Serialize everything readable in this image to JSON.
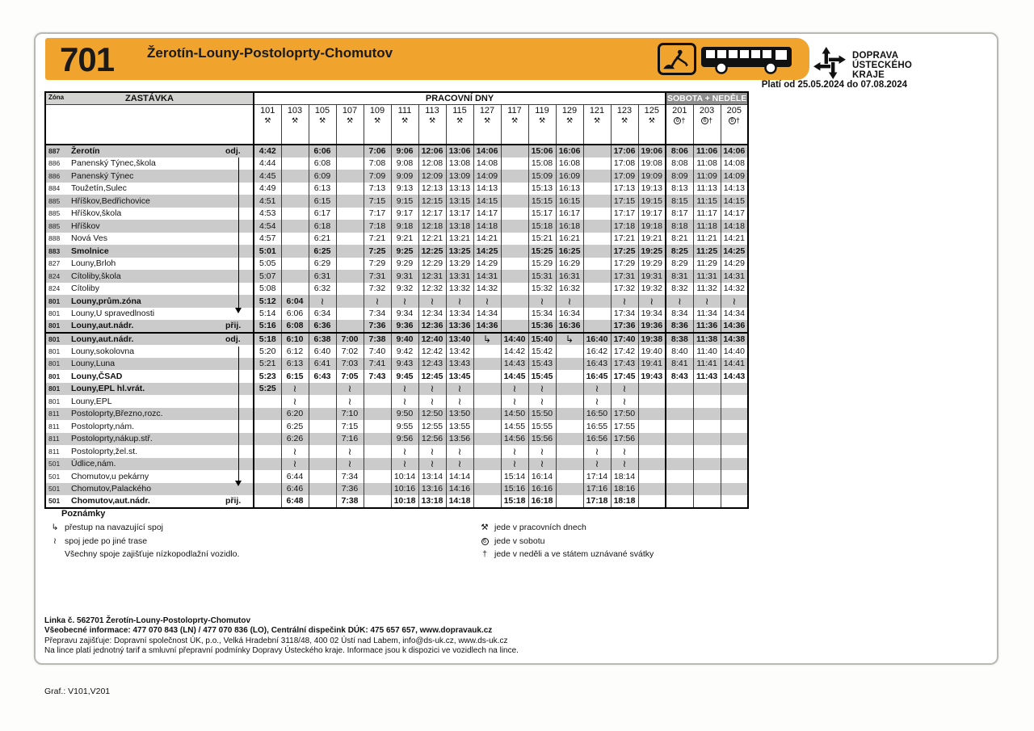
{
  "header": {
    "route_number": "701",
    "title": "Žerotín-Louny-Postoloprty-Chomutov",
    "validity": "Platí od 25.05.2024 do 07.08.2024",
    "accent_color": "#f0a42e",
    "brand": {
      "line1": "DOPRAVA",
      "line2": "ÚSTECKÉHO",
      "line3": "KRAJE"
    }
  },
  "table": {
    "zone_header": "Zóna",
    "stop_header": "ZASTÁVKA",
    "workdays_header": "PRACOVNÍ DNY",
    "weekend_header": "SOBOTA + NEDĚLE",
    "symbols": {
      "workday": "⚒",
      "saturday": "6",
      "holiday": "†",
      "other_route": "≀",
      "transfer": "↳"
    },
    "columns": [
      {
        "id": "101",
        "type": "workday"
      },
      {
        "id": "103",
        "type": "workday"
      },
      {
        "id": "105",
        "type": "workday"
      },
      {
        "id": "107",
        "type": "workday"
      },
      {
        "id": "109",
        "type": "workday"
      },
      {
        "id": "111",
        "type": "workday"
      },
      {
        "id": "113",
        "type": "workday"
      },
      {
        "id": "115",
        "type": "workday"
      },
      {
        "id": "127",
        "type": "workday"
      },
      {
        "id": "117",
        "type": "workday"
      },
      {
        "id": "119",
        "type": "workday"
      },
      {
        "id": "129",
        "type": "workday"
      },
      {
        "id": "121",
        "type": "workday"
      },
      {
        "id": "123",
        "type": "workday"
      },
      {
        "id": "125",
        "type": "workday"
      },
      {
        "id": "201",
        "type": "weekend"
      },
      {
        "id": "203",
        "type": "weekend"
      },
      {
        "id": "205",
        "type": "weekend"
      }
    ],
    "rows": [
      {
        "zone": "887",
        "name": "Žerotín",
        "bold": true,
        "note": "odj.",
        "times": [
          "4:42",
          "",
          "6:06",
          "",
          "7:06",
          "9:06",
          "12:06",
          "13:06",
          "14:06",
          "",
          "15:06",
          "16:06",
          "",
          "17:06",
          "19:06",
          "8:06",
          "11:06",
          "14:06"
        ]
      },
      {
        "zone": "886",
        "name": "Panenský Týnec,škola",
        "bold": false,
        "note": "",
        "times": [
          "4:44",
          "",
          "6:08",
          "",
          "7:08",
          "9:08",
          "12:08",
          "13:08",
          "14:08",
          "",
          "15:08",
          "16:08",
          "",
          "17:08",
          "19:08",
          "8:08",
          "11:08",
          "14:08"
        ]
      },
      {
        "zone": "886",
        "name": "Panenský Týnec",
        "bold": false,
        "note": "",
        "times": [
          "4:45",
          "",
          "6:09",
          "",
          "7:09",
          "9:09",
          "12:09",
          "13:09",
          "14:09",
          "",
          "15:09",
          "16:09",
          "",
          "17:09",
          "19:09",
          "8:09",
          "11:09",
          "14:09"
        ]
      },
      {
        "zone": "884",
        "name": "Toužetín,Sulec",
        "bold": false,
        "note": "",
        "times": [
          "4:49",
          "",
          "6:13",
          "",
          "7:13",
          "9:13",
          "12:13",
          "13:13",
          "14:13",
          "",
          "15:13",
          "16:13",
          "",
          "17:13",
          "19:13",
          "8:13",
          "11:13",
          "14:13"
        ]
      },
      {
        "zone": "885",
        "name": "Hříškov,Bedřichovice",
        "bold": false,
        "note": "",
        "times": [
          "4:51",
          "",
          "6:15",
          "",
          "7:15",
          "9:15",
          "12:15",
          "13:15",
          "14:15",
          "",
          "15:15",
          "16:15",
          "",
          "17:15",
          "19:15",
          "8:15",
          "11:15",
          "14:15"
        ]
      },
      {
        "zone": "885",
        "name": "Hříškov,škola",
        "bold": false,
        "note": "",
        "times": [
          "4:53",
          "",
          "6:17",
          "",
          "7:17",
          "9:17",
          "12:17",
          "13:17",
          "14:17",
          "",
          "15:17",
          "16:17",
          "",
          "17:17",
          "19:17",
          "8:17",
          "11:17",
          "14:17"
        ]
      },
      {
        "zone": "885",
        "name": "Hříškov",
        "bold": false,
        "note": "",
        "times": [
          "4:54",
          "",
          "6:18",
          "",
          "7:18",
          "9:18",
          "12:18",
          "13:18",
          "14:18",
          "",
          "15:18",
          "16:18",
          "",
          "17:18",
          "19:18",
          "8:18",
          "11:18",
          "14:18"
        ]
      },
      {
        "zone": "888",
        "name": "Nová Ves",
        "bold": false,
        "note": "",
        "times": [
          "4:57",
          "",
          "6:21",
          "",
          "7:21",
          "9:21",
          "12:21",
          "13:21",
          "14:21",
          "",
          "15:21",
          "16:21",
          "",
          "17:21",
          "19:21",
          "8:21",
          "11:21",
          "14:21"
        ]
      },
      {
        "zone": "883",
        "name": "Smolnice",
        "bold": true,
        "note": "",
        "times": [
          "5:01",
          "",
          "6:25",
          "",
          "7:25",
          "9:25",
          "12:25",
          "13:25",
          "14:25",
          "",
          "15:25",
          "16:25",
          "",
          "17:25",
          "19:25",
          "8:25",
          "11:25",
          "14:25"
        ]
      },
      {
        "zone": "827",
        "name": "Louny,Brloh",
        "bold": false,
        "note": "",
        "times": [
          "5:05",
          "",
          "6:29",
          "",
          "7:29",
          "9:29",
          "12:29",
          "13:29",
          "14:29",
          "",
          "15:29",
          "16:29",
          "",
          "17:29",
          "19:29",
          "8:29",
          "11:29",
          "14:29"
        ]
      },
      {
        "zone": "824",
        "name": "Cítoliby,škola",
        "bold": false,
        "note": "",
        "times": [
          "5:07",
          "",
          "6:31",
          "",
          "7:31",
          "9:31",
          "12:31",
          "13:31",
          "14:31",
          "",
          "15:31",
          "16:31",
          "",
          "17:31",
          "19:31",
          "8:31",
          "11:31",
          "14:31"
        ]
      },
      {
        "zone": "824",
        "name": "Cítoliby",
        "bold": false,
        "note": "",
        "times": [
          "5:08",
          "",
          "6:32",
          "",
          "7:32",
          "9:32",
          "12:32",
          "13:32",
          "14:32",
          "",
          "15:32",
          "16:32",
          "",
          "17:32",
          "19:32",
          "8:32",
          "11:32",
          "14:32"
        ]
      },
      {
        "zone": "801",
        "name": "Louny,prům.zóna",
        "bold": true,
        "note": "",
        "times": [
          "5:12",
          "6:04",
          "≀",
          "",
          "≀",
          "≀",
          "≀",
          "≀",
          "≀",
          "",
          "≀",
          "≀",
          "",
          "≀",
          "≀",
          "≀",
          "≀",
          "≀"
        ]
      },
      {
        "zone": "801",
        "name": "Louny,U spravedlnosti",
        "bold": false,
        "note": "",
        "times": [
          "5:14",
          "6:06",
          "6:34",
          "",
          "7:34",
          "9:34",
          "12:34",
          "13:34",
          "14:34",
          "",
          "15:34",
          "16:34",
          "",
          "17:34",
          "19:34",
          "8:34",
          "11:34",
          "14:34"
        ]
      },
      {
        "zone": "801",
        "name": "Louny,aut.nádr.",
        "bold": true,
        "note": "přij.",
        "times": [
          "5:16",
          "6:08",
          "6:36",
          "",
          "7:36",
          "9:36",
          "12:36",
          "13:36",
          "14:36",
          "",
          "15:36",
          "16:36",
          "",
          "17:36",
          "19:36",
          "8:36",
          "11:36",
          "14:36"
        ]
      },
      {
        "zone": "801",
        "name": "Louny,aut.nádr.",
        "bold": true,
        "note": "odj.",
        "times": [
          "5:18",
          "6:10",
          "6:38",
          "7:00",
          "7:38",
          "9:40",
          "12:40",
          "13:40",
          "↳",
          "14:40",
          "15:40",
          "↳",
          "16:40",
          "17:40",
          "19:38",
          "8:38",
          "11:38",
          "14:38"
        ]
      },
      {
        "zone": "801",
        "name": "Louny,sokolovna",
        "bold": false,
        "note": "",
        "times": [
          "5:20",
          "6:12",
          "6:40",
          "7:02",
          "7:40",
          "9:42",
          "12:42",
          "13:42",
          "",
          "14:42",
          "15:42",
          "",
          "16:42",
          "17:42",
          "19:40",
          "8:40",
          "11:40",
          "14:40"
        ]
      },
      {
        "zone": "801",
        "name": "Louny,Luna",
        "bold": false,
        "note": "",
        "times": [
          "5:21",
          "6:13",
          "6:41",
          "7:03",
          "7:41",
          "9:43",
          "12:43",
          "13:43",
          "",
          "14:43",
          "15:43",
          "",
          "16:43",
          "17:43",
          "19:41",
          "8:41",
          "11:41",
          "14:41"
        ]
      },
      {
        "zone": "801",
        "name": "Louny,ČSAD",
        "bold": true,
        "note": "",
        "times": [
          "5:23",
          "6:15",
          "6:43",
          "7:05",
          "7:43",
          "9:45",
          "12:45",
          "13:45",
          "",
          "14:45",
          "15:45",
          "",
          "16:45",
          "17:45",
          "19:43",
          "8:43",
          "11:43",
          "14:43"
        ]
      },
      {
        "zone": "801",
        "name": "Louny,EPL hl.vrát.",
        "bold": true,
        "note": "",
        "times": [
          "5:25",
          "≀",
          "",
          "≀",
          "",
          "≀",
          "≀",
          "≀",
          "",
          "≀",
          "≀",
          "",
          "≀",
          "≀",
          "",
          "",
          "",
          ""
        ]
      },
      {
        "zone": "801",
        "name": "Louny,EPL",
        "bold": false,
        "note": "",
        "times": [
          "",
          "≀",
          "",
          "≀",
          "",
          "≀",
          "≀",
          "≀",
          "",
          "≀",
          "≀",
          "",
          "≀",
          "≀",
          "",
          "",
          "",
          ""
        ]
      },
      {
        "zone": "811",
        "name": "Postoloprty,Březno,rozc.",
        "bold": false,
        "note": "",
        "times": [
          "",
          "6:20",
          "",
          "7:10",
          "",
          "9:50",
          "12:50",
          "13:50",
          "",
          "14:50",
          "15:50",
          "",
          "16:50",
          "17:50",
          "",
          "",
          "",
          ""
        ]
      },
      {
        "zone": "811",
        "name": "Postoloprty,nám.",
        "bold": false,
        "note": "",
        "times": [
          "",
          "6:25",
          "",
          "7:15",
          "",
          "9:55",
          "12:55",
          "13:55",
          "",
          "14:55",
          "15:55",
          "",
          "16:55",
          "17:55",
          "",
          "",
          "",
          ""
        ]
      },
      {
        "zone": "811",
        "name": "Postoloprty,nákup.stř.",
        "bold": false,
        "note": "",
        "times": [
          "",
          "6:26",
          "",
          "7:16",
          "",
          "9:56",
          "12:56",
          "13:56",
          "",
          "14:56",
          "15:56",
          "",
          "16:56",
          "17:56",
          "",
          "",
          "",
          ""
        ]
      },
      {
        "zone": "811",
        "name": "Postoloprty,žel.st.",
        "bold": false,
        "note": "",
        "times": [
          "",
          "≀",
          "",
          "≀",
          "",
          "≀",
          "≀",
          "≀",
          "",
          "≀",
          "≀",
          "",
          "≀",
          "≀",
          "",
          "",
          "",
          ""
        ]
      },
      {
        "zone": "501",
        "name": "Údlice,nám.",
        "bold": false,
        "note": "",
        "times": [
          "",
          "≀",
          "",
          "≀",
          "",
          "≀",
          "≀",
          "≀",
          "",
          "≀",
          "≀",
          "",
          "≀",
          "≀",
          "",
          "",
          "",
          ""
        ]
      },
      {
        "zone": "501",
        "name": "Chomutov,u pekárny",
        "bold": false,
        "note": "",
        "times": [
          "",
          "6:44",
          "",
          "7:34",
          "",
          "10:14",
          "13:14",
          "14:14",
          "",
          "15:14",
          "16:14",
          "",
          "17:14",
          "18:14",
          "",
          "",
          "",
          ""
        ]
      },
      {
        "zone": "501",
        "name": "Chomutov,Palackého",
        "bold": false,
        "note": "",
        "times": [
          "",
          "6:46",
          "",
          "7:36",
          "",
          "10:16",
          "13:16",
          "14:16",
          "",
          "15:16",
          "16:16",
          "",
          "17:16",
          "18:16",
          "",
          "",
          "",
          ""
        ]
      },
      {
        "zone": "501",
        "name": "Chomutov,aut.nádr.",
        "bold": true,
        "note": "přij.",
        "times": [
          "",
          "6:48",
          "",
          "7:38",
          "",
          "10:18",
          "13:18",
          "14:18",
          "",
          "15:18",
          "16:18",
          "",
          "17:18",
          "18:18",
          "",
          "",
          "",
          ""
        ]
      }
    ]
  },
  "legend": {
    "title": "Poznámky",
    "left": [
      {
        "sym": "↳",
        "circled": false,
        "text": "přestup na navazující spoj"
      },
      {
        "sym": "≀",
        "circled": false,
        "text": "spoj jede po jiné trase"
      },
      {
        "sym": "",
        "circled": false,
        "text": "Všechny spoje zajišťuje nízkopodlažní vozidlo."
      }
    ],
    "right": [
      {
        "sym": "⚒",
        "circled": false,
        "text": "jede v pracovních dnech"
      },
      {
        "sym": "6",
        "circled": true,
        "text": "jede v sobotu"
      },
      {
        "sym": "†",
        "circled": false,
        "text": "jede v neděli a ve státem uznávané svátky"
      }
    ]
  },
  "footer": {
    "lines": [
      "Linka č. 562701  Žerotín-Louny-Postoloprty-Chomutov",
      "Všeobecné informace: 477 070 843 (LN) / 477 070 836 (LO), Centrální dispečink DÚK: 475 657 657, www.dopravauk.cz",
      "Přepravu zajišťuje: Dopravní společnost ÚK, p.o., Velká Hradební 3118/48, 400 02 Ústí nad Labem, info@ds-uk.cz, www.ds-uk.cz",
      "Na lince platí jednotný tarif a smluvní přepravní podmínky Dopravy Ústeckého kraje. Informace jsou k dispozici ve vozidlech na lince."
    ],
    "graf": "Graf.:  V101,V201"
  }
}
